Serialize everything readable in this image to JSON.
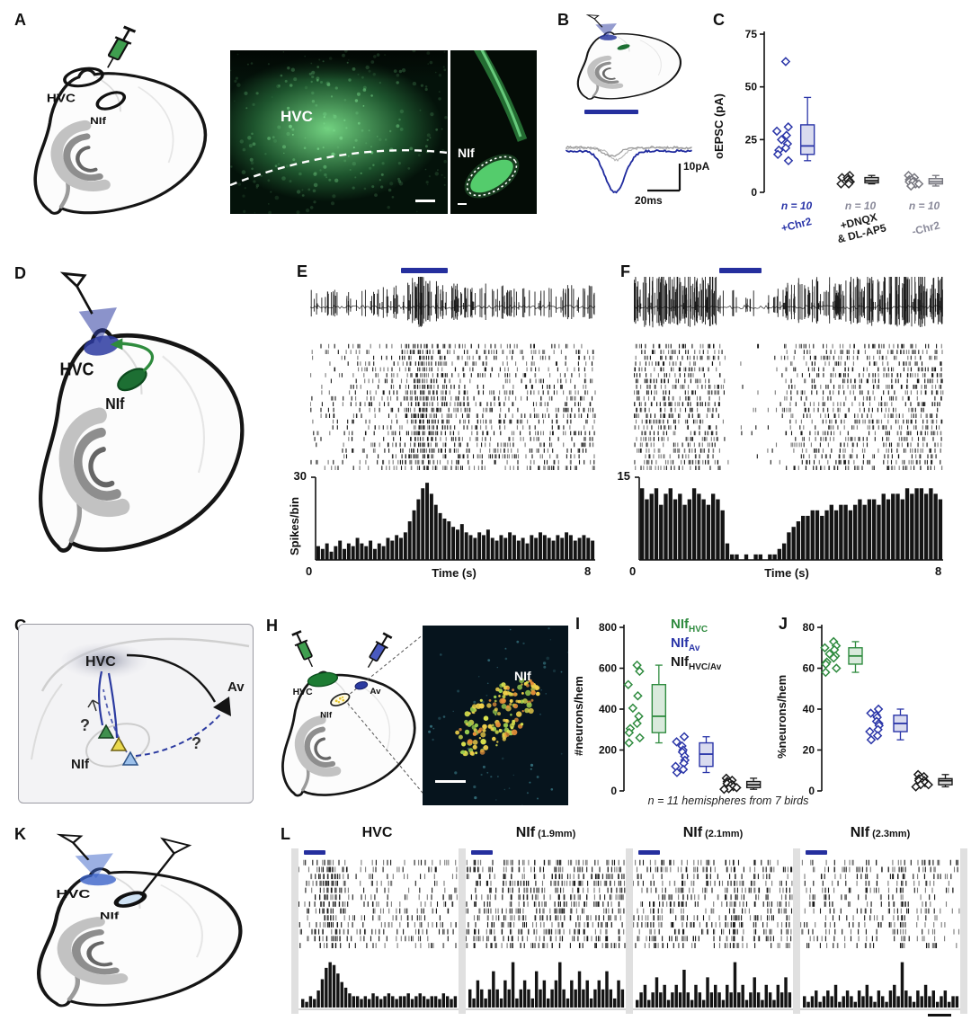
{
  "panel_labels": {
    "a": "A",
    "b": "B",
    "c": "C",
    "d": "D",
    "e": "E",
    "f": "F",
    "g": "G",
    "h": "H",
    "i": "I",
    "j": "J",
    "k": "K",
    "l": "L"
  },
  "colors": {
    "blue": "#2a35a8",
    "green": "#2f8b3f",
    "gray": "#8a8a9a",
    "black": "#1a1a1a",
    "micro_green": "#57c26a"
  },
  "panel_a": {
    "hvc_label": "HVC",
    "nif_label": "NIf",
    "micro_hvc_label": "HVC",
    "micro_nif_label": "NIf"
  },
  "panel_b": {
    "scale_time": "20ms",
    "scale_amp": "10pA"
  },
  "panel_c": {
    "ylabel": "oEPSC (pA)",
    "groups": [
      {
        "label1": "+Chr2",
        "label2": "",
        "n": "n = 10",
        "label_color": "#2a35a8",
        "n_color": "#2a35a8"
      },
      {
        "label1": "+DNQX",
        "label2": "& DL-AP5",
        "n": "n = 10",
        "label_color": "#1a1a1a",
        "n_color": "#8a8a9a"
      },
      {
        "label1": "-Chr2",
        "label2": "",
        "n": "n = 10",
        "label_color": "#8a8a9a",
        "n_color": "#8a8a9a"
      }
    ]
  },
  "panel_d": {
    "hvc": "HVC",
    "nif": "NIf"
  },
  "panel_e": {
    "ylabel": "Spikes/bin",
    "ymax": "30",
    "x_start": "0",
    "x_end": "8",
    "xlabel": "Time (s)"
  },
  "panel_f": {
    "ymax": "15",
    "x_start": "0",
    "x_end": "8",
    "xlabel": "Time (s)"
  },
  "panel_g": {
    "hvc": "HVC",
    "av": "Av",
    "nif": "NIf",
    "q1": "?",
    "q2": "?"
  },
  "panel_h": {
    "hvc": "HVC",
    "av": "Av",
    "nif": "NIf",
    "micro_label": "NIf"
  },
  "panel_i": {
    "ylabel": "#neurons/hem",
    "legend": [
      {
        "main": "NIf",
        "sub": "HVC",
        "color": "#2f8b3f"
      },
      {
        "main": "NIf",
        "sub": "Av",
        "color": "#2a35a8"
      },
      {
        "main": "NIf",
        "sub": "HVC/Av",
        "color": "#1a1a1a"
      }
    ],
    "caption": "n = 11 hemispheres from 7 birds"
  },
  "panel_j": {
    "ylabel": "%neurons/hem"
  },
  "panel_k": {
    "hvc": "HVC",
    "nif": "NIf"
  },
  "panel_l": {
    "titles": [
      {
        "main": "HVC",
        "sub": ""
      },
      {
        "main": "NIf",
        "sub": "(1.9mm)"
      },
      {
        "main": "NIf",
        "sub": "(2.1mm)"
      },
      {
        "main": "NIf",
        "sub": "(2.3mm)"
      }
    ]
  },
  "chart_data": [
    {
      "id": "c",
      "type": "scatter",
      "ylabel": "oEPSC (pA)",
      "ylim": [
        0,
        75
      ],
      "yticks": [
        0,
        25,
        50,
        75
      ],
      "layout": {
        "ml": 32
      },
      "groups": [
        {
          "label": "+Chr2",
          "color": "#2a35a8",
          "points": [
            62,
            31,
            29,
            27,
            25,
            23,
            21,
            20,
            18,
            15
          ],
          "box": {
            "lo": 15,
            "q1": 18,
            "med": 22,
            "q3": 32,
            "hi": 45
          }
        },
        {
          "label": "+DNQX & DL-AP5",
          "color": "#222222",
          "points": [
            8,
            7,
            7,
            6,
            6,
            5,
            5,
            5,
            4,
            4
          ],
          "box": {
            "lo": 4,
            "q1": 4.5,
            "med": 5.5,
            "q3": 7,
            "hi": 8
          }
        },
        {
          "label": "-Chr2",
          "color": "#77777f",
          "points": [
            8,
            7,
            6,
            6,
            5,
            5,
            5,
            4,
            4,
            3
          ],
          "box": {
            "lo": 3,
            "q1": 4,
            "med": 5,
            "q3": 6.5,
            "hi": 8
          }
        }
      ]
    },
    {
      "id": "e",
      "type": "bar",
      "ylabel": "Spikes/bin",
      "xlabel": "Time (s)",
      "ylim": [
        0,
        30
      ],
      "xlim": [
        0,
        8
      ],
      "stim_window": [
        2.55,
        3.8
      ],
      "values": [
        5,
        4,
        6,
        3,
        5,
        7,
        4,
        6,
        5,
        8,
        6,
        5,
        7,
        4,
        6,
        5,
        8,
        7,
        9,
        8,
        10,
        14,
        18,
        22,
        26,
        28,
        24,
        20,
        17,
        15,
        14,
        12,
        11,
        13,
        10,
        9,
        8,
        10,
        9,
        11,
        8,
        7,
        9,
        8,
        10,
        9,
        7,
        8,
        6,
        9,
        8,
        10,
        9,
        8,
        7,
        9,
        8,
        10,
        9,
        7,
        8,
        9,
        8,
        7
      ]
    },
    {
      "id": "f",
      "type": "bar",
      "ylabel": "Spikes/bin",
      "xlabel": "Time (s)",
      "ylim": [
        0,
        15
      ],
      "xlim": [
        0,
        8
      ],
      "stim_window": [
        2.2,
        3.3
      ],
      "values": [
        13,
        11,
        12,
        13,
        10,
        12,
        13,
        11,
        12,
        10,
        11,
        13,
        12,
        11,
        10,
        12,
        11,
        9,
        3,
        1,
        1,
        0,
        1,
        0,
        1,
        1,
        0,
        1,
        1,
        2,
        3,
        5,
        6,
        7,
        8,
        8,
        9,
        9,
        8,
        9,
        10,
        9,
        10,
        10,
        9,
        10,
        11,
        10,
        11,
        11,
        10,
        12,
        11,
        12,
        12,
        11,
        13,
        12,
        13,
        13,
        12,
        13,
        12,
        11
      ]
    },
    {
      "id": "i",
      "type": "scatter",
      "ylabel": "#neurons/hem",
      "ylim": [
        0,
        800
      ],
      "yticks": [
        0,
        200,
        400,
        600,
        800
      ],
      "layout": {
        "ml": 36
      },
      "caption": "n = 11 hemispheres from 7 birds",
      "groups": [
        {
          "label": "NIf_HVC",
          "color": "#2f8b3f",
          "points": [
            615,
            585,
            520,
            465,
            405,
            365,
            330,
            305,
            285,
            260,
            235
          ],
          "box": {
            "lo": 235,
            "q1": 285,
            "med": 365,
            "q3": 520,
            "hi": 615
          }
        },
        {
          "label": "NIf_Av",
          "color": "#2a35a8",
          "points": [
            265,
            240,
            220,
            200,
            190,
            170,
            150,
            135,
            120,
            105,
            90
          ],
          "box": {
            "lo": 90,
            "q1": 120,
            "med": 180,
            "q3": 235,
            "hi": 265
          }
        },
        {
          "label": "NIf_HVC/Av",
          "color": "#1a1a1a",
          "points": [
            62,
            52,
            46,
            40,
            36,
            30,
            26,
            21,
            16,
            11,
            8
          ],
          "box": {
            "lo": 8,
            "q1": 16,
            "med": 30,
            "q3": 46,
            "hi": 62
          }
        }
      ]
    },
    {
      "id": "j",
      "type": "scatter",
      "ylabel": "%neurons/hem",
      "ylim": [
        0,
        80
      ],
      "yticks": [
        0,
        20,
        40,
        60,
        80
      ],
      "layout": {
        "ml": 30
      },
      "groups": [
        {
          "label": "NIf_HVC",
          "color": "#2f8b3f",
          "points": [
            73,
            71,
            70,
            69,
            67,
            66,
            65,
            63,
            62,
            60,
            58
          ],
          "box": {
            "lo": 58,
            "q1": 62,
            "med": 66,
            "q3": 70,
            "hi": 73
          }
        },
        {
          "label": "NIf_Av",
          "color": "#2a35a8",
          "points": [
            40,
            38,
            37,
            36,
            34,
            33,
            32,
            30,
            29,
            27,
            25
          ],
          "box": {
            "lo": 25,
            "q1": 29,
            "med": 33,
            "q3": 37,
            "hi": 40
          }
        },
        {
          "label": "NIf_HVC/Av",
          "color": "#1a1a1a",
          "points": [
            8,
            7,
            6,
            6,
            5,
            5,
            4,
            4,
            3,
            3,
            2
          ],
          "box": {
            "lo": 2,
            "q1": 3,
            "med": 5,
            "q3": 6,
            "hi": 8
          }
        }
      ]
    },
    {
      "id": "l",
      "type": "bar-multi",
      "xlim": [
        0,
        8
      ],
      "panels": [
        {
          "label": "HVC",
          "stim": [
            0.3,
            1.4
          ],
          "values": [
            3,
            2,
            4,
            3,
            6,
            10,
            14,
            16,
            15,
            12,
            9,
            7,
            5,
            4,
            4,
            3,
            4,
            3,
            5,
            4,
            3,
            4,
            5,
            4,
            3,
            4,
            4,
            5,
            3,
            4,
            5,
            4,
            3,
            4,
            4,
            3,
            5,
            4,
            3,
            4
          ]
        },
        {
          "label": "NIf (1.9mm)",
          "stim": [
            0.3,
            1.4
          ],
          "values": [
            2,
            1,
            3,
            2,
            1,
            2,
            4,
            2,
            1,
            3,
            2,
            5,
            1,
            2,
            3,
            2,
            1,
            4,
            2,
            3,
            1,
            2,
            3,
            5,
            2,
            1,
            3,
            2,
            4,
            2,
            3,
            1,
            2,
            3,
            2,
            4,
            2,
            1,
            3,
            2
          ]
        },
        {
          "label": "NIf (2.1mm)",
          "stim": [
            0.3,
            1.4
          ],
          "values": [
            1,
            2,
            3,
            1,
            2,
            4,
            2,
            3,
            1,
            2,
            3,
            2,
            5,
            2,
            1,
            3,
            2,
            1,
            4,
            2,
            3,
            2,
            1,
            3,
            2,
            6,
            2,
            3,
            1,
            2,
            4,
            2,
            1,
            3,
            2,
            1,
            3,
            2,
            4,
            2
          ]
        },
        {
          "label": "NIf (2.3mm)",
          "stim": [
            0.3,
            1.4
          ],
          "values": [
            2,
            1,
            2,
            3,
            1,
            2,
            3,
            2,
            4,
            1,
            2,
            3,
            2,
            1,
            3,
            2,
            4,
            2,
            1,
            3,
            2,
            1,
            3,
            4,
            2,
            8,
            3,
            2,
            1,
            3,
            2,
            4,
            2,
            3,
            1,
            2,
            3,
            1,
            2,
            2
          ]
        }
      ]
    }
  ]
}
